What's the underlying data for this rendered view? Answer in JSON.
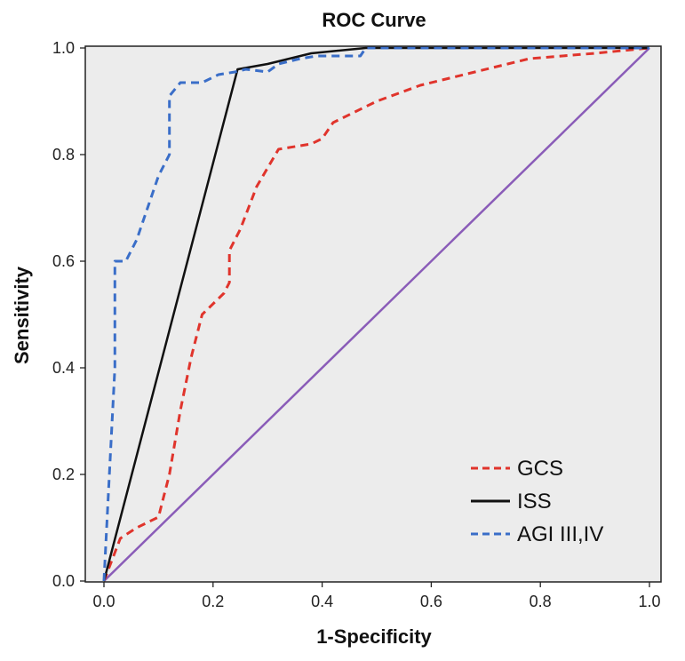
{
  "chart_data": {
    "type": "line",
    "title": "ROC Curve",
    "xlabel": "1-Specificity",
    "ylabel": "Sensitivity",
    "xlim": [
      0,
      1
    ],
    "ylim": [
      0,
      1
    ],
    "xticks": [
      "0.0",
      "0.2",
      "0.4",
      "0.6",
      "0.8",
      "1.0"
    ],
    "yticks": [
      "0.0",
      "0.2",
      "0.4",
      "0.6",
      "0.8",
      "1.0"
    ],
    "grid": false,
    "background": "#ececec",
    "legend_position": "bottom-right",
    "series": [
      {
        "name": "GCS",
        "color": "#e0342c",
        "dash": "dashed",
        "points": [
          [
            0,
            0
          ],
          [
            0.03,
            0.08
          ],
          [
            0.06,
            0.1
          ],
          [
            0.1,
            0.12
          ],
          [
            0.11,
            0.16
          ],
          [
            0.12,
            0.2
          ],
          [
            0.14,
            0.32
          ],
          [
            0.16,
            0.42
          ],
          [
            0.18,
            0.5
          ],
          [
            0.22,
            0.54
          ],
          [
            0.23,
            0.56
          ],
          [
            0.23,
            0.62
          ],
          [
            0.25,
            0.66
          ],
          [
            0.28,
            0.74
          ],
          [
            0.32,
            0.81
          ],
          [
            0.38,
            0.82
          ],
          [
            0.4,
            0.83
          ],
          [
            0.42,
            0.86
          ],
          [
            0.46,
            0.88
          ],
          [
            0.5,
            0.9
          ],
          [
            0.58,
            0.93
          ],
          [
            0.66,
            0.95
          ],
          [
            0.74,
            0.97
          ],
          [
            0.78,
            0.98
          ],
          [
            0.9,
            0.99
          ],
          [
            1,
            1
          ]
        ]
      },
      {
        "name": "ISS",
        "color": "#111111",
        "dash": "solid",
        "points": [
          [
            0,
            0
          ],
          [
            0.245,
            0.96
          ],
          [
            0.3,
            0.97
          ],
          [
            0.38,
            0.99
          ],
          [
            0.48,
            1
          ],
          [
            1,
            1
          ]
        ]
      },
      {
        "name": "AGI III,IV",
        "color": "#3a6ec8",
        "dash": "dashed",
        "points": [
          [
            0,
            0
          ],
          [
            0.01,
            0.2
          ],
          [
            0.02,
            0.4
          ],
          [
            0.02,
            0.6
          ],
          [
            0.04,
            0.6
          ],
          [
            0.06,
            0.64
          ],
          [
            0.08,
            0.7
          ],
          [
            0.1,
            0.76
          ],
          [
            0.12,
            0.8
          ],
          [
            0.12,
            0.91
          ],
          [
            0.14,
            0.935
          ],
          [
            0.18,
            0.935
          ],
          [
            0.21,
            0.95
          ],
          [
            0.24,
            0.955
          ],
          [
            0.26,
            0.96
          ],
          [
            0.3,
            0.955
          ],
          [
            0.32,
            0.97
          ],
          [
            0.36,
            0.98
          ],
          [
            0.39,
            0.985
          ],
          [
            0.47,
            0.985
          ],
          [
            0.48,
            1
          ],
          [
            0.6,
            1
          ],
          [
            1,
            1
          ]
        ]
      },
      {
        "name": "",
        "color": "#8a5cb8",
        "dash": "solid",
        "points": [
          [
            0,
            0
          ],
          [
            1,
            1
          ]
        ]
      }
    ],
    "legend": [
      {
        "label": "GCS",
        "color": "#e0342c",
        "dash": "dashed"
      },
      {
        "label": "ISS",
        "color": "#111111",
        "dash": "solid"
      },
      {
        "label": "AGI III,IV",
        "color": "#3a6ec8",
        "dash": "dashed"
      }
    ]
  }
}
